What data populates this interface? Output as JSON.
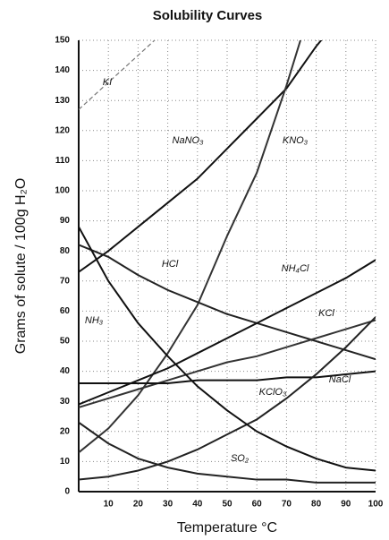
{
  "chart_data": {
    "type": "line",
    "title": "Solubility Curves",
    "x_label": "Temperature °C",
    "y_label": "Grams of solute / 100g H₂O",
    "x": [
      0,
      10,
      20,
      30,
      40,
      50,
      60,
      70,
      80,
      90,
      100
    ],
    "xlim": [
      0,
      100
    ],
    "xticks": [
      10,
      20,
      30,
      40,
      50,
      60,
      70,
      80,
      90,
      100
    ],
    "ylim": [
      0,
      150
    ],
    "yticks": [
      0,
      10,
      20,
      30,
      40,
      50,
      60,
      70,
      80,
      90,
      100,
      110,
      120,
      130,
      140,
      150
    ],
    "grid": true,
    "series": [
      {
        "name": "KI",
        "color": "#777777",
        "dashed": true,
        "values": [
          127,
          136,
          145,
          154,
          null,
          null,
          null,
          null,
          null,
          null,
          null
        ]
      },
      {
        "name": "NaNO₃",
        "color": "#111111",
        "values": [
          73,
          80,
          88,
          96,
          104,
          114,
          124,
          134,
          148,
          160,
          null
        ]
      },
      {
        "name": "KNO₃",
        "color": "#333333",
        "values": [
          13,
          21,
          32,
          46,
          62,
          85,
          106,
          135,
          167,
          null,
          null
        ]
      },
      {
        "name": "HCl",
        "color": "#222222",
        "values": [
          82,
          78,
          72,
          67,
          63,
          59,
          56,
          53,
          50,
          47,
          44
        ]
      },
      {
        "name": "NH₄Cl",
        "color": "#111111",
        "values": [
          29,
          33,
          37,
          41,
          46,
          51,
          56,
          61,
          66,
          71,
          77
        ]
      },
      {
        "name": "KCl",
        "color": "#333333",
        "values": [
          28,
          31,
          34,
          37,
          40,
          43,
          45,
          48,
          51,
          54,
          57
        ]
      },
      {
        "name": "NaCl",
        "color": "#111111",
        "values": [
          36,
          36,
          36,
          36,
          37,
          37,
          37,
          38,
          38,
          39,
          40
        ]
      },
      {
        "name": "KClO₃",
        "color": "#222222",
        "values": [
          4,
          5,
          7,
          10,
          14,
          19,
          24,
          31,
          39,
          48,
          58
        ]
      },
      {
        "name": "NH₃",
        "color": "#111111",
        "values": [
          88,
          70,
          56,
          45,
          35,
          27,
          20,
          15,
          11,
          8,
          7
        ]
      },
      {
        "name": "SO₂",
        "color": "#222222",
        "values": [
          23,
          16,
          11,
          8,
          6,
          5,
          4,
          4,
          3,
          3,
          3
        ]
      }
    ]
  }
}
